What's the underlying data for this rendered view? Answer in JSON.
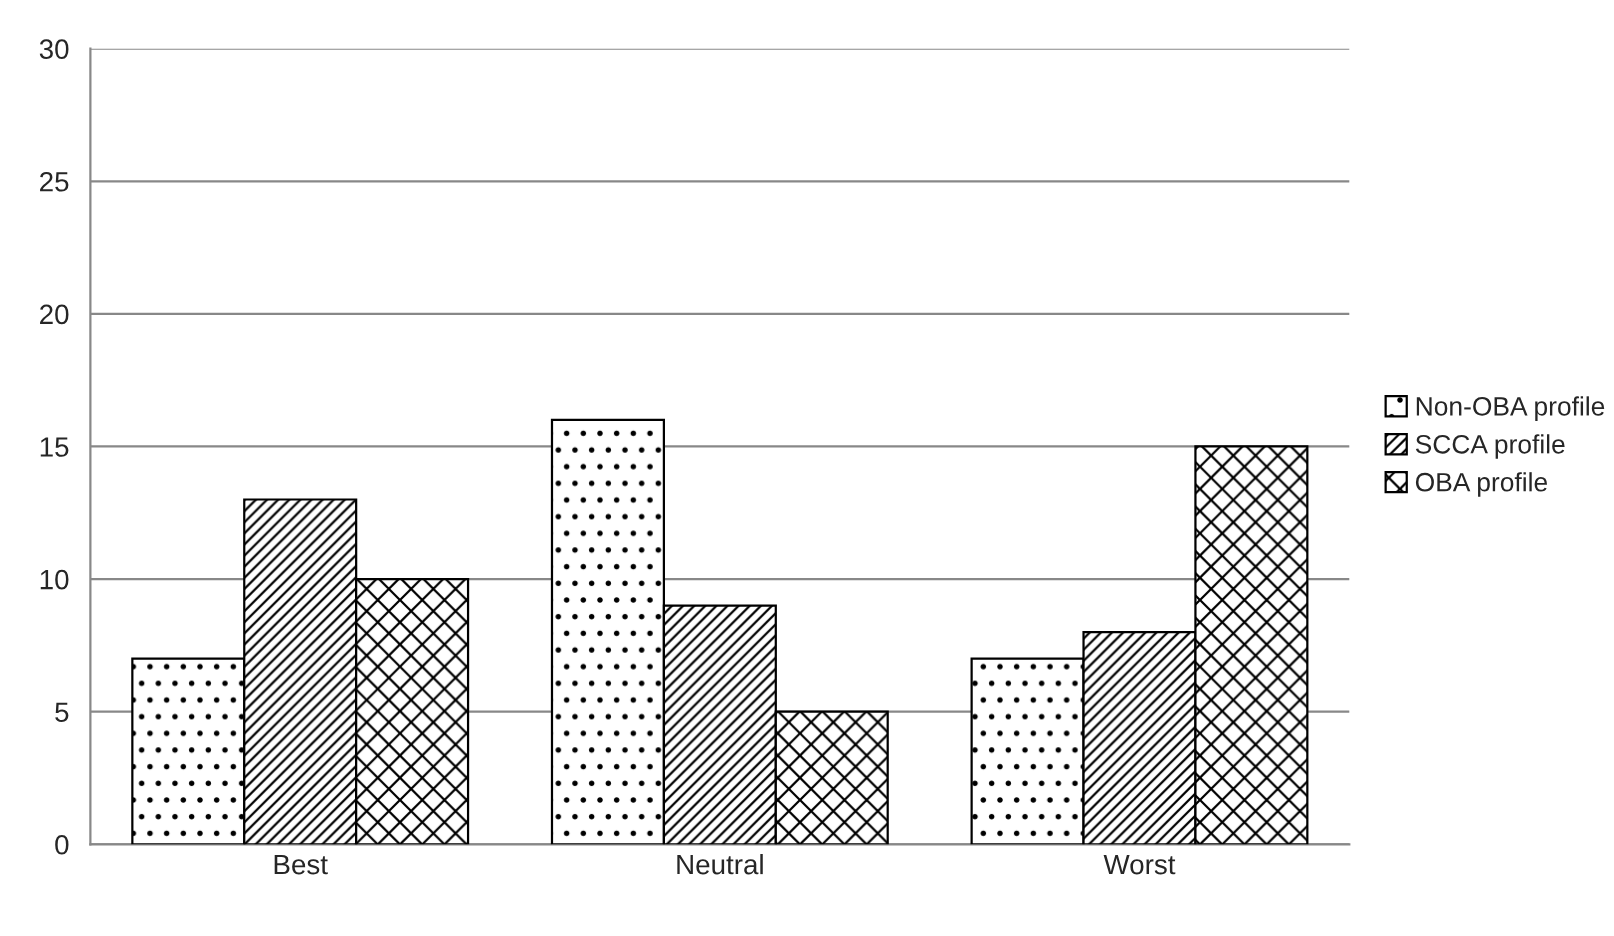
{
  "chart_data": {
    "type": "bar",
    "categories": [
      "Best",
      "Neutral",
      "Worst"
    ],
    "series": [
      {
        "name": "Non-OBA profile",
        "color": "#000000",
        "values": [
          7,
          16,
          7
        ]
      },
      {
        "name": "SCCA profile",
        "color": "#000000",
        "values": [
          13,
          9,
          8
        ]
      },
      {
        "name": "OBA profile",
        "color": "#000000",
        "values": [
          10,
          5,
          15
        ]
      }
    ],
    "ylim": [
      0,
      30
    ],
    "yticks": [
      0,
      5,
      10,
      15,
      20,
      25,
      30
    ],
    "grid": "y",
    "legend": "right"
  }
}
